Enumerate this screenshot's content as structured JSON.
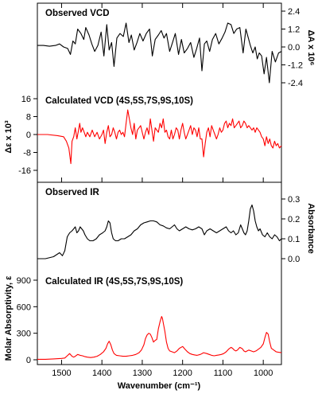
{
  "chart_data": [
    {
      "type": "line",
      "title": "Observed VCD",
      "right_axis_label": "ΔA x 10⁶",
      "y_ticks": [
        "2.4",
        "1.2",
        "0.0",
        "-1.2",
        "-2.4"
      ],
      "ylim": [
        -2.4,
        2.4
      ],
      "xlim": [
        1560,
        955
      ],
      "color": "#000000",
      "x": [
        1560,
        1545,
        1530,
        1515,
        1505,
        1495,
        1485,
        1478,
        1472,
        1466,
        1460,
        1452,
        1445,
        1440,
        1432,
        1425,
        1418,
        1410,
        1402,
        1395,
        1388,
        1382,
        1376,
        1370,
        1363,
        1355,
        1347,
        1340,
        1333,
        1327,
        1320,
        1313,
        1306,
        1298,
        1290,
        1282,
        1275,
        1268,
        1260,
        1253,
        1246,
        1240,
        1232,
        1225,
        1218,
        1210,
        1203,
        1196,
        1188,
        1180,
        1172,
        1165,
        1158,
        1152,
        1146,
        1140,
        1133,
        1126,
        1118,
        1110,
        1102,
        1095,
        1088,
        1080,
        1073,
        1066,
        1058,
        1050,
        1043,
        1037,
        1032,
        1026,
        1020,
        1015,
        1010,
        1004,
        998,
        992,
        985,
        978,
        970,
        962,
        955
      ],
      "y": [
        0.1,
        0.1,
        0.05,
        0.1,
        0.2,
        0.0,
        -0.1,
        -0.5,
        0.4,
        0.2,
        1.2,
        0.9,
        0.5,
        1.3,
        0.8,
        0.2,
        -0.3,
        0.1,
        1.0,
        -0.6,
        1.5,
        -0.2,
        0.3,
        -1.3,
        0.6,
        0.9,
        0.7,
        1.6,
        0.3,
        0.8,
        -0.2,
        0.3,
        0.9,
        0.4,
        0.9,
        1.2,
        -0.6,
        0.5,
        0.8,
        1.1,
        0.6,
        0.9,
        -0.3,
        0.3,
        0.9,
        -0.5,
        0.5,
        -0.4,
        -0.1,
        0.3,
        -0.7,
        -0.1,
        0.6,
        -1.6,
        0.2,
        0.4,
        -0.3,
        0.5,
        0.9,
        0.2,
        0.6,
        1.0,
        1.6,
        1.5,
        0.9,
        1.2,
        1.3,
        -0.4,
        1.2,
        0.6,
        0.1,
        -0.4,
        0.0,
        -0.8,
        -0.4,
        -0.6,
        -1.8,
        -0.7,
        -2.4,
        -0.3,
        -1.0,
        -0.4,
        -0.3
      ]
    },
    {
      "type": "line",
      "title": "Calculated VCD (4S,5S,7S,9S,10S)",
      "left_axis_label": "Δε x 10³",
      "y_ticks": [
        "16",
        "8",
        "0",
        "-8",
        "-16"
      ],
      "ylim": [
        -16,
        16
      ],
      "xlim": [
        1560,
        955
      ],
      "color": "#ff0000",
      "x": [
        1560,
        1535,
        1510,
        1495,
        1488,
        1482,
        1477,
        1474,
        1470,
        1466,
        1462,
        1458,
        1455,
        1452,
        1448,
        1444,
        1440,
        1436,
        1430,
        1424,
        1418,
        1412,
        1406,
        1400,
        1396,
        1392,
        1388,
        1384,
        1380,
        1376,
        1372,
        1368,
        1364,
        1360,
        1356,
        1352,
        1348,
        1344,
        1340,
        1336,
        1332,
        1328,
        1324,
        1320,
        1316,
        1312,
        1308,
        1304,
        1300,
        1296,
        1292,
        1288,
        1284,
        1280,
        1276,
        1272,
        1268,
        1264,
        1260,
        1256,
        1252,
        1248,
        1244,
        1240,
        1236,
        1232,
        1228,
        1224,
        1220,
        1216,
        1212,
        1208,
        1204,
        1200,
        1196,
        1192,
        1188,
        1184,
        1180,
        1176,
        1172,
        1168,
        1164,
        1160,
        1156,
        1152,
        1148,
        1144,
        1140,
        1136,
        1132,
        1128,
        1124,
        1120,
        1116,
        1112,
        1108,
        1104,
        1100,
        1096,
        1092,
        1088,
        1084,
        1080,
        1076,
        1072,
        1068,
        1064,
        1060,
        1056,
        1052,
        1048,
        1044,
        1040,
        1036,
        1032,
        1028,
        1024,
        1020,
        1016,
        1012,
        1008,
        1004,
        1000,
        996,
        992,
        988,
        984,
        980,
        976,
        972,
        968,
        964,
        960,
        955
      ],
      "y": [
        0,
        0,
        -0.5,
        -1,
        -3,
        -6,
        -13,
        -3,
        -1,
        3,
        -2,
        2,
        5,
        1,
        3,
        1,
        -1,
        1,
        -1,
        2,
        -1,
        1,
        -2,
        0,
        2,
        -4,
        1,
        4,
        -1,
        0,
        3,
        1,
        -2,
        1,
        2,
        0,
        1,
        -1,
        5,
        11,
        7,
        3,
        0,
        5,
        -2,
        2,
        3,
        4,
        1,
        -2,
        1,
        3,
        0,
        7,
        2,
        -3,
        3,
        2,
        1,
        5,
        3,
        7,
        1,
        2,
        -1,
        -2,
        2,
        -2,
        0,
        3,
        2,
        -2,
        2,
        5,
        1,
        -2,
        0,
        2,
        4,
        0,
        3,
        2,
        -1,
        3,
        -2,
        -2,
        -10,
        -4,
        1,
        3,
        -1,
        4,
        2,
        0,
        -2,
        0,
        3,
        1,
        2,
        5,
        6,
        3,
        5,
        4,
        7,
        3,
        4,
        5,
        6,
        3,
        4,
        6,
        5,
        3,
        4,
        3,
        2,
        3,
        1,
        3,
        2,
        1,
        -1,
        -2,
        -5,
        -1,
        -4,
        -2,
        -5,
        -6,
        -3,
        -5,
        -4,
        -6,
        -5
      ]
    },
    {
      "type": "line",
      "title": "Observed IR",
      "right_axis_label": "Absorbance",
      "y_ticks": [
        "0.3",
        "0.2",
        "0.1",
        "0.0"
      ],
      "ylim": [
        0.0,
        0.3
      ],
      "xlim": [
        1560,
        955
      ],
      "color": "#000000",
      "x": [
        1560,
        1540,
        1520,
        1505,
        1498,
        1492,
        1486,
        1480,
        1474,
        1470,
        1466,
        1462,
        1458,
        1454,
        1450,
        1446,
        1442,
        1436,
        1430,
        1422,
        1414,
        1406,
        1398,
        1392,
        1388,
        1384,
        1380,
        1376,
        1372,
        1366,
        1360,
        1352,
        1344,
        1336,
        1328,
        1320,
        1312,
        1304,
        1296,
        1288,
        1280,
        1272,
        1264,
        1256,
        1248,
        1240,
        1232,
        1226,
        1220,
        1214,
        1208,
        1200,
        1192,
        1184,
        1176,
        1168,
        1160,
        1152,
        1146,
        1140,
        1132,
        1124,
        1116,
        1108,
        1100,
        1092,
        1086,
        1080,
        1074,
        1068,
        1062,
        1056,
        1052,
        1048,
        1044,
        1040,
        1036,
        1032,
        1028,
        1024,
        1020,
        1016,
        1012,
        1008,
        1002,
        996,
        990,
        984,
        978,
        972,
        966,
        960,
        955
      ],
      "y": [
        0.0,
        0.0,
        0.01,
        0.03,
        0.015,
        0.04,
        0.11,
        0.13,
        0.14,
        0.15,
        0.16,
        0.13,
        0.14,
        0.16,
        0.15,
        0.14,
        0.12,
        0.1,
        0.09,
        0.09,
        0.1,
        0.12,
        0.13,
        0.14,
        0.16,
        0.19,
        0.18,
        0.13,
        0.1,
        0.09,
        0.09,
        0.1,
        0.1,
        0.11,
        0.12,
        0.14,
        0.15,
        0.17,
        0.18,
        0.185,
        0.19,
        0.19,
        0.185,
        0.17,
        0.165,
        0.155,
        0.15,
        0.16,
        0.17,
        0.15,
        0.14,
        0.15,
        0.16,
        0.15,
        0.145,
        0.15,
        0.16,
        0.15,
        0.12,
        0.14,
        0.15,
        0.14,
        0.13,
        0.14,
        0.15,
        0.16,
        0.14,
        0.13,
        0.14,
        0.12,
        0.13,
        0.17,
        0.15,
        0.13,
        0.12,
        0.14,
        0.19,
        0.25,
        0.27,
        0.24,
        0.19,
        0.16,
        0.14,
        0.15,
        0.12,
        0.11,
        0.13,
        0.11,
        0.1,
        0.12,
        0.11,
        0.09,
        0.1
      ]
    },
    {
      "type": "line",
      "title": "Calculated IR (4S,5S,7S,9S,10S)",
      "left_axis_label": "Molar Absorptivity, ε",
      "y_ticks": [
        "900",
        "600",
        "300",
        "0"
      ],
      "ylim": [
        0,
        900
      ],
      "xlim": [
        1560,
        955
      ],
      "color": "#ff0000",
      "x": [
        1560,
        1540,
        1520,
        1500,
        1492,
        1486,
        1480,
        1474,
        1470,
        1466,
        1460,
        1454,
        1448,
        1442,
        1436,
        1428,
        1420,
        1412,
        1404,
        1396,
        1390,
        1386,
        1382,
        1378,
        1374,
        1370,
        1364,
        1356,
        1348,
        1340,
        1332,
        1324,
        1316,
        1308,
        1302,
        1296,
        1292,
        1288,
        1284,
        1280,
        1276,
        1272,
        1268,
        1264,
        1260,
        1256,
        1252,
        1250,
        1248,
        1244,
        1240,
        1236,
        1232,
        1226,
        1220,
        1214,
        1208,
        1200,
        1194,
        1188,
        1182,
        1176,
        1170,
        1164,
        1156,
        1148,
        1140,
        1134,
        1128,
        1122,
        1116,
        1110,
        1104,
        1098,
        1092,
        1086,
        1080,
        1076,
        1072,
        1068,
        1064,
        1058,
        1052,
        1048,
        1044,
        1040,
        1036,
        1030,
        1024,
        1018,
        1012,
        1006,
        1000,
        996,
        992,
        988,
        984,
        980,
        974,
        968,
        962,
        955
      ],
      "y": [
        5,
        5,
        10,
        15,
        20,
        45,
        70,
        40,
        30,
        40,
        60,
        50,
        45,
        35,
        30,
        25,
        30,
        40,
        60,
        90,
        130,
        180,
        210,
        170,
        110,
        70,
        50,
        45,
        40,
        40,
        45,
        50,
        60,
        80,
        110,
        170,
        240,
        280,
        300,
        290,
        250,
        200,
        220,
        230,
        350,
        430,
        490,
        470,
        420,
        320,
        200,
        130,
        100,
        90,
        80,
        100,
        130,
        150,
        120,
        90,
        70,
        60,
        55,
        50,
        60,
        80,
        70,
        60,
        50,
        45,
        50,
        55,
        60,
        70,
        90,
        120,
        140,
        130,
        110,
        100,
        110,
        140,
        125,
        100,
        90,
        100,
        110,
        100,
        90,
        100,
        120,
        140,
        180,
        250,
        310,
        290,
        200,
        130,
        110,
        90,
        85,
        80
      ]
    }
  ],
  "x_axis": {
    "label": "Wavenumber (cm⁻¹)",
    "ticks": [
      "1500",
      "1400",
      "1300",
      "1200",
      "1100",
      "1000"
    ]
  }
}
